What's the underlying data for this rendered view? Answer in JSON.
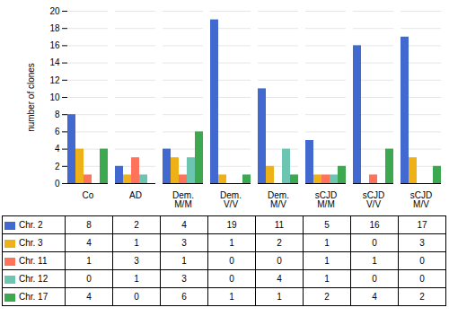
{
  "chart_data": {
    "type": "bar",
    "categories": [
      "Co",
      "AD",
      "Dem.\nM/M",
      "Dem.\nV/V",
      "Dem.\nM/V",
      "sCJD\nM/M",
      "sCJD\nV/V",
      "sCJD\nM/V"
    ],
    "series": [
      {
        "name": "Chr. 2",
        "values": [
          8,
          2,
          4,
          19,
          11,
          5,
          16,
          17
        ]
      },
      {
        "name": "Chr. 3",
        "values": [
          4,
          1,
          3,
          1,
          2,
          1,
          0,
          3
        ]
      },
      {
        "name": "Chr. 11",
        "values": [
          1,
          3,
          1,
          0,
          0,
          1,
          1,
          0
        ]
      },
      {
        "name": "Chr. 12",
        "values": [
          0,
          1,
          3,
          0,
          4,
          1,
          0,
          0
        ]
      },
      {
        "name": "Chr. 17",
        "values": [
          4,
          0,
          6,
          1,
          1,
          2,
          4,
          2
        ]
      }
    ],
    "ylabel": "number of clones",
    "ylim": [
      0,
      20
    ],
    "yticks": [
      0,
      2,
      4,
      6,
      8,
      10,
      12,
      14,
      16,
      18,
      20
    ],
    "grid": true,
    "legend": "bottom",
    "data_labels": true
  }
}
